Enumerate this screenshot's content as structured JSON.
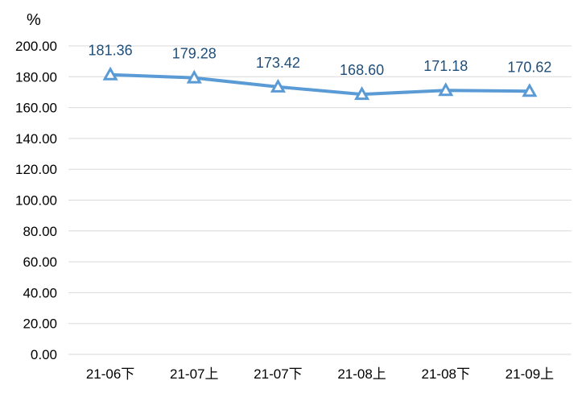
{
  "chart_data": {
    "type": "line",
    "title": "",
    "xlabel": "",
    "ylabel": "%",
    "categories": [
      "21-06下",
      "21-07上",
      "21-07下",
      "21-08上",
      "21-08下",
      "21-09上"
    ],
    "series": [
      {
        "values": [
          181.36,
          179.28,
          173.42,
          168.6,
          171.18,
          170.62
        ]
      }
    ],
    "data_labels": [
      "181.36",
      "179.28",
      "173.42",
      "168.60",
      "171.18",
      "170.62"
    ],
    "y_tick_labels": [
      "0.00",
      "20.00",
      "40.00",
      "60.00",
      "80.00",
      "100.00",
      "120.00",
      "140.00",
      "160.00",
      "180.00",
      "200.00"
    ],
    "ylim": [
      0,
      200
    ],
    "grid": true,
    "legend": "none",
    "marker": "hollow-triangle",
    "line_color": "#5b9bd5",
    "label_color": "#1f4e79",
    "grid_color": "#d9d9d9"
  }
}
